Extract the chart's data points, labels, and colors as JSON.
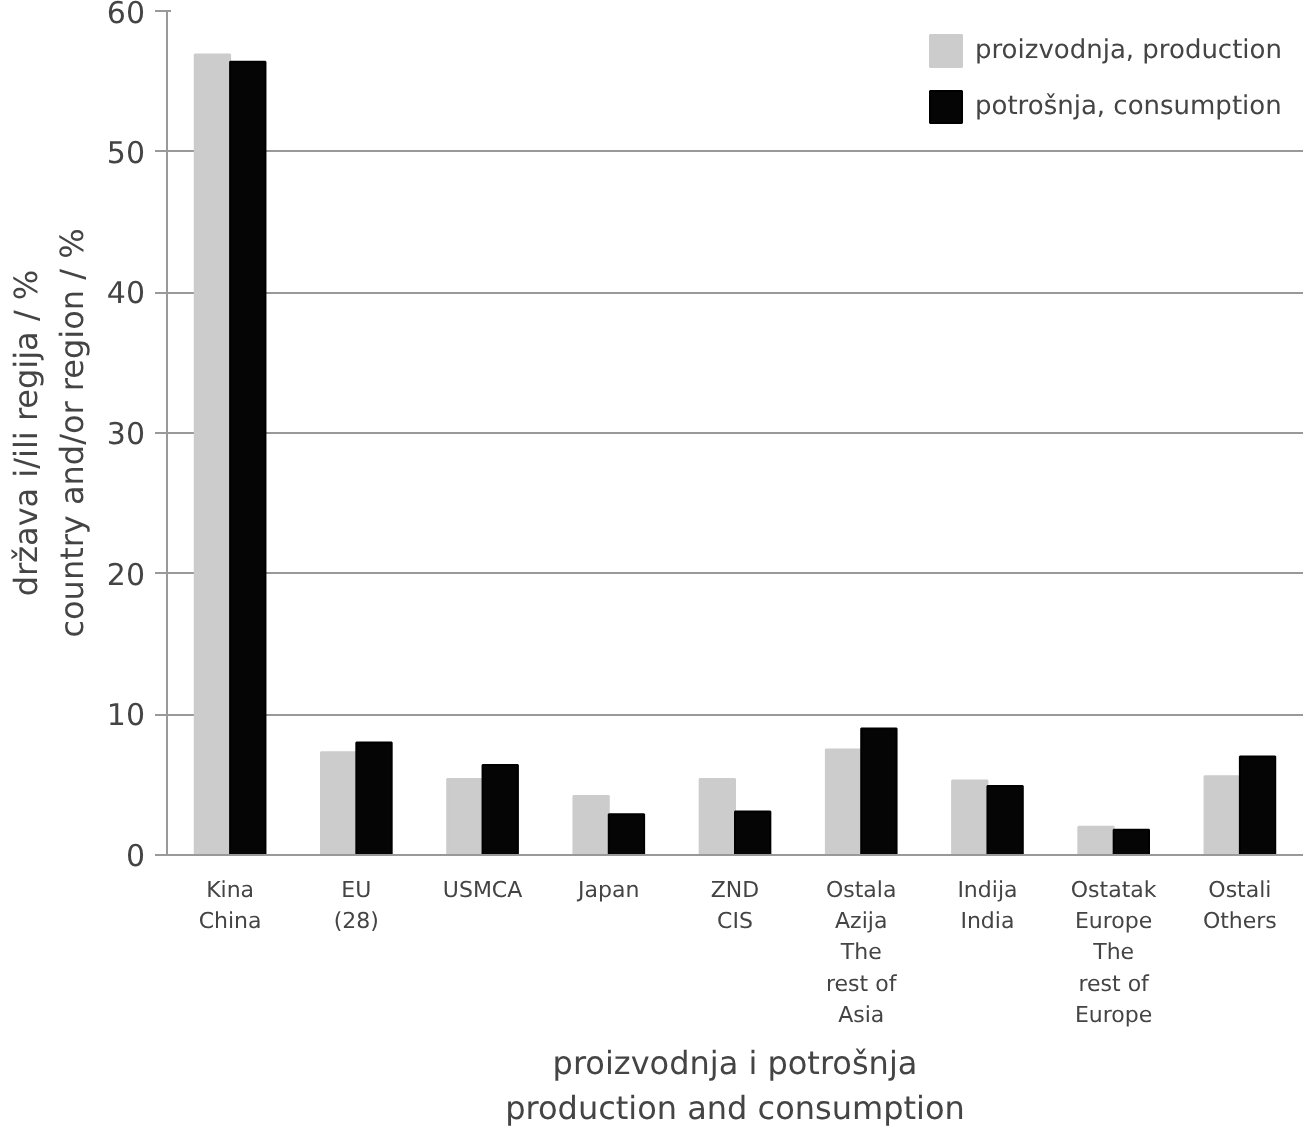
{
  "chart_data": {
    "type": "bar",
    "xlabel": "proizvodnja i potrošnja\nproduction and consumption",
    "ylabel": "država i/ili regija / %\ncountry and/or region / %",
    "categories": [
      "Kina\nChina",
      "EU\n(28)",
      "USMCA",
      "Japan",
      "ZND\nCIS",
      "Ostala\nAzija\nThe\nrest of\nAsia",
      "Indija\nIndia",
      "Ostatak\nEurope\nThe\nrest of\nEurope",
      "Ostali\nOthers"
    ],
    "series": [
      {
        "name": "proizvodnja, production",
        "color": "#cccccc",
        "values": [
          56.9,
          7.3,
          5.4,
          4.2,
          5.4,
          7.5,
          5.3,
          2.0,
          5.6
        ]
      },
      {
        "name": "potrošnja, consumption",
        "color": "#050505",
        "values": [
          56.4,
          8.0,
          6.4,
          2.9,
          3.1,
          9.0,
          4.9,
          1.8,
          7.0
        ]
      }
    ],
    "ylim": [
      0,
      60
    ],
    "yticks": [
      0,
      10,
      20,
      30,
      40,
      50,
      60
    ],
    "grid": "y",
    "legend": "top right"
  }
}
